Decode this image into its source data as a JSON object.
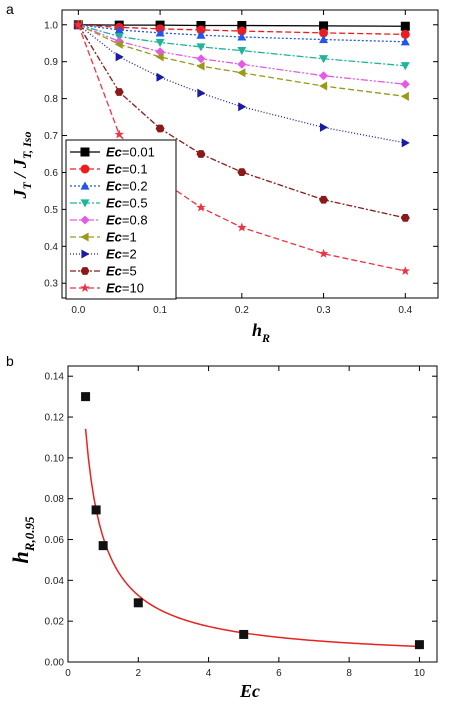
{
  "chart_data": [
    {
      "type": "line",
      "panel_label": "a",
      "xlabel": "h",
      "xlabel_sub": "R",
      "ylabel_main": "J",
      "ylabel_sub1": "T",
      "ylabel_slash": " / ",
      "ylabel_main2": "J",
      "ylabel_sub2": "T, Iso",
      "xlim": [
        -0.02,
        0.44
      ],
      "ylim": [
        0.26,
        1.04
      ],
      "xticks": [
        0.0,
        0.1,
        0.2,
        0.3,
        0.4
      ],
      "yticks": [
        0.3,
        0.4,
        0.5,
        0.6,
        0.7,
        0.8,
        0.9,
        1.0
      ],
      "xtick_labels": [
        "0.0",
        "0.1",
        "0.2",
        "0.3",
        "0.4"
      ],
      "ytick_labels": [
        "0.3",
        "0.4",
        "0.5",
        "0.6",
        "0.7",
        "0.8",
        "0.9",
        "1.0"
      ],
      "legend_position": "bottom-left",
      "legend_prefix": "Ec",
      "series": [
        {
          "name": "=0.01",
          "color": "#000000",
          "marker": "square",
          "dash": "",
          "x": [
            0,
            0.05,
            0.1,
            0.15,
            0.2,
            0.3,
            0.4
          ],
          "y": [
            1.0,
            0.999,
            0.999,
            0.998,
            0.998,
            0.997,
            0.996
          ]
        },
        {
          "name": "=0.1",
          "color": "#ee1c1c",
          "marker": "circle",
          "dash": "6,3",
          "x": [
            0,
            0.05,
            0.1,
            0.15,
            0.2,
            0.3,
            0.4
          ],
          "y": [
            1.0,
            0.993,
            0.989,
            0.986,
            0.983,
            0.978,
            0.974
          ]
        },
        {
          "name": "=0.2",
          "color": "#2255ee",
          "marker": "triangle-up",
          "dash": "2,2",
          "x": [
            0,
            0.05,
            0.1,
            0.15,
            0.2,
            0.3,
            0.4
          ],
          "y": [
            1.0,
            0.986,
            0.978,
            0.972,
            0.967,
            0.96,
            0.954
          ]
        },
        {
          "name": "=0.5",
          "color": "#1fb59a",
          "marker": "triangle-down",
          "dash": "7,2,2,2",
          "x": [
            0,
            0.05,
            0.1,
            0.15,
            0.2,
            0.3,
            0.4
          ],
          "y": [
            1.0,
            0.968,
            0.952,
            0.94,
            0.93,
            0.908,
            0.889
          ]
        },
        {
          "name": "=0.8",
          "color": "#e659e6",
          "marker": "diamond",
          "dash": "7,2,2,2,2,2",
          "x": [
            0,
            0.05,
            0.1,
            0.15,
            0.2,
            0.3,
            0.4
          ],
          "y": [
            1.0,
            0.955,
            0.927,
            0.908,
            0.893,
            0.862,
            0.839
          ]
        },
        {
          "name": "=1",
          "color": "#9a9a1a",
          "marker": "triangle-left",
          "dash": "6,3",
          "x": [
            0,
            0.05,
            0.1,
            0.15,
            0.2,
            0.3,
            0.4
          ],
          "y": [
            1.0,
            0.947,
            0.913,
            0.888,
            0.87,
            0.834,
            0.806
          ]
        },
        {
          "name": "=2",
          "color": "#1a1aa8",
          "marker": "triangle-right",
          "dash": "1,2",
          "x": [
            0,
            0.05,
            0.1,
            0.15,
            0.2,
            0.3,
            0.4
          ],
          "y": [
            1.0,
            0.913,
            0.858,
            0.815,
            0.778,
            0.722,
            0.68
          ]
        },
        {
          "name": "=5",
          "color": "#8a1a1a",
          "marker": "hexagon",
          "dash": "6,2,2,2",
          "x": [
            0,
            0.05,
            0.1,
            0.15,
            0.2,
            0.3,
            0.4
          ],
          "y": [
            1.0,
            0.818,
            0.719,
            0.65,
            0.601,
            0.526,
            0.477
          ]
        },
        {
          "name": "=10",
          "color": "#ee3344",
          "marker": "star",
          "dash": "6,3",
          "x": [
            0,
            0.05,
            0.1,
            0.15,
            0.2,
            0.3,
            0.4
          ],
          "y": [
            1.0,
            0.703,
            0.581,
            0.505,
            0.451,
            0.38,
            0.333
          ]
        }
      ]
    },
    {
      "type": "scatter",
      "panel_label": "b",
      "xlabel": "Ec",
      "ylabel_main": "h",
      "ylabel_sub": "R,0.95",
      "xlim": [
        0,
        10.5
      ],
      "ylim": [
        0,
        0.145
      ],
      "xticks": [
        0,
        2,
        4,
        6,
        8,
        10
      ],
      "yticks": [
        0.0,
        0.02,
        0.04,
        0.06,
        0.08,
        0.1,
        0.12,
        0.14
      ],
      "xtick_labels": [
        "0",
        "2",
        "4",
        "6",
        "8",
        "10"
      ],
      "ytick_labels": [
        "0.00",
        "0.02",
        "0.04",
        "0.06",
        "0.08",
        "0.10",
        "0.12",
        "0.14"
      ],
      "points": {
        "x": [
          0.5,
          0.8,
          1.0,
          2.0,
          5.0,
          10.0
        ],
        "y": [
          0.13,
          0.0745,
          0.057,
          0.029,
          0.0135,
          0.0085
        ]
      },
      "point_color": "#111111",
      "fit_color": "#e8231f"
    }
  ]
}
